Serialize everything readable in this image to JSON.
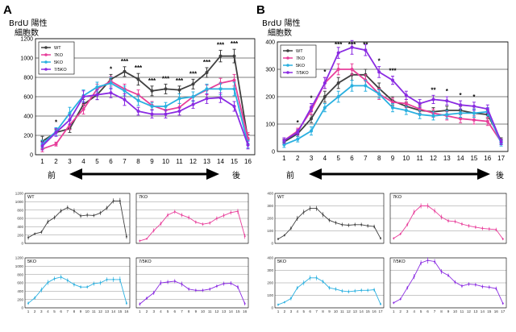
{
  "labels": {
    "A": "A",
    "B": "B",
    "ylabel_line1": "BrdU 陽性",
    "ylabel_line2": "細胞数",
    "front": "前",
    "back": "後"
  },
  "colors": {
    "WT": "#404040",
    "7KO": "#e83e9a",
    "5KO": "#2ab0e0",
    "7/5KO": "#8a2be2"
  },
  "chart_data": [
    {
      "id": "A",
      "type": "line",
      "xlabel": "",
      "ylabel": "BrdU 陽性 細胞数",
      "x": [
        1,
        2,
        3,
        4,
        5,
        6,
        7,
        8,
        9,
        10,
        11,
        12,
        13,
        14,
        15,
        16
      ],
      "ylim": [
        0,
        1200
      ],
      "yticks": [
        0,
        200,
        400,
        600,
        800,
        1000,
        1200
      ],
      "legend_position": "top-left",
      "series": [
        {
          "name": "WT",
          "values": [
            140,
            230,
            270,
            520,
            620,
            780,
            860,
            780,
            660,
            680,
            670,
            730,
            850,
            1020,
            1020,
            160
          ],
          "err": [
            50,
            30,
            40,
            50,
            50,
            50,
            50,
            60,
            50,
            50,
            40,
            50,
            50,
            60,
            70,
            50
          ]
        },
        {
          "name": "7KO",
          "values": [
            60,
            110,
            310,
            470,
            680,
            760,
            680,
            620,
            510,
            460,
            490,
            600,
            670,
            740,
            770,
            170
          ],
          "err": [
            30,
            20,
            50,
            50,
            50,
            50,
            50,
            50,
            40,
            40,
            40,
            50,
            50,
            50,
            60,
            60
          ]
        },
        {
          "name": "5KO",
          "values": [
            110,
            240,
            430,
            610,
            700,
            740,
            660,
            560,
            500,
            500,
            580,
            600,
            680,
            680,
            680,
            110
          ],
          "err": [
            40,
            40,
            60,
            60,
            50,
            60,
            50,
            50,
            40,
            40,
            50,
            50,
            50,
            60,
            70,
            40
          ]
        },
        {
          "name": "7/5KO",
          "values": [
            90,
            230,
            360,
            600,
            620,
            640,
            570,
            450,
            420,
            420,
            450,
            520,
            580,
            590,
            500,
            100
          ],
          "err": [
            40,
            40,
            50,
            60,
            50,
            50,
            60,
            40,
            40,
            40,
            40,
            40,
            50,
            50,
            50,
            40
          ]
        }
      ],
      "significance": [
        {
          "x": 2,
          "label": "*"
        },
        {
          "x": 6,
          "label": "*"
        },
        {
          "x": 7,
          "label": "***"
        },
        {
          "x": 8,
          "label": "***"
        },
        {
          "x": 9,
          "label": "***"
        },
        {
          "x": 10,
          "label": "***"
        },
        {
          "x": 11,
          "label": "***"
        },
        {
          "x": 12,
          "label": "***"
        },
        {
          "x": 13,
          "label": "***"
        },
        {
          "x": 14,
          "label": "***"
        },
        {
          "x": 15,
          "label": "***"
        }
      ]
    },
    {
      "id": "B",
      "type": "line",
      "xlabel": "",
      "ylabel": "BrdU 陽性 細胞数",
      "x": [
        1,
        2,
        3,
        4,
        5,
        6,
        7,
        8,
        9,
        10,
        11,
        12,
        13,
        14,
        15,
        16,
        17
      ],
      "ylim": [
        0,
        400
      ],
      "yticks": [
        0,
        100,
        200,
        300,
        400
      ],
      "legend_position": "top-left",
      "series": [
        {
          "name": "WT",
          "values": [
            35,
            65,
            120,
            200,
            250,
            280,
            280,
            230,
            185,
            165,
            150,
            145,
            150,
            150,
            140,
            135,
            40
          ],
          "err": [
            10,
            10,
            15,
            20,
            20,
            20,
            20,
            20,
            15,
            15,
            15,
            15,
            15,
            15,
            15,
            15,
            10
          ]
        },
        {
          "name": "7KO",
          "values": [
            40,
            75,
            150,
            250,
            300,
            300,
            260,
            210,
            180,
            175,
            155,
            140,
            130,
            120,
            115,
            110,
            35
          ],
          "err": [
            10,
            10,
            15,
            20,
            20,
            20,
            20,
            20,
            15,
            15,
            15,
            15,
            15,
            15,
            15,
            15,
            10
          ]
        },
        {
          "name": "5KO",
          "values": [
            25,
            45,
            75,
            160,
            200,
            240,
            240,
            210,
            160,
            150,
            135,
            130,
            135,
            140,
            140,
            145,
            30
          ],
          "err": [
            10,
            10,
            15,
            15,
            20,
            20,
            20,
            15,
            15,
            15,
            15,
            15,
            15,
            15,
            15,
            15,
            10
          ]
        },
        {
          "name": "7/5KO",
          "values": [
            40,
            70,
            160,
            250,
            360,
            380,
            370,
            290,
            260,
            205,
            175,
            190,
            185,
            170,
            165,
            155,
            35
          ],
          "err": [
            10,
            10,
            15,
            20,
            20,
            25,
            20,
            20,
            15,
            15,
            15,
            15,
            15,
            15,
            15,
            15,
            10
          ]
        }
      ],
      "significance": [
        {
          "x": 2,
          "label": "*"
        },
        {
          "x": 3,
          "label": "*"
        },
        {
          "x": 4,
          "label": "*"
        },
        {
          "x": 5,
          "label": "***"
        },
        {
          "x": 6,
          "label": "***"
        },
        {
          "x": 7,
          "label": "**"
        },
        {
          "x": 8,
          "label": "*"
        },
        {
          "x": 9,
          "label": "***"
        },
        {
          "x": 12,
          "label": "**"
        },
        {
          "x": 13,
          "label": "*"
        },
        {
          "x": 14,
          "label": "*"
        },
        {
          "x": 15,
          "label": "*"
        }
      ]
    }
  ]
}
